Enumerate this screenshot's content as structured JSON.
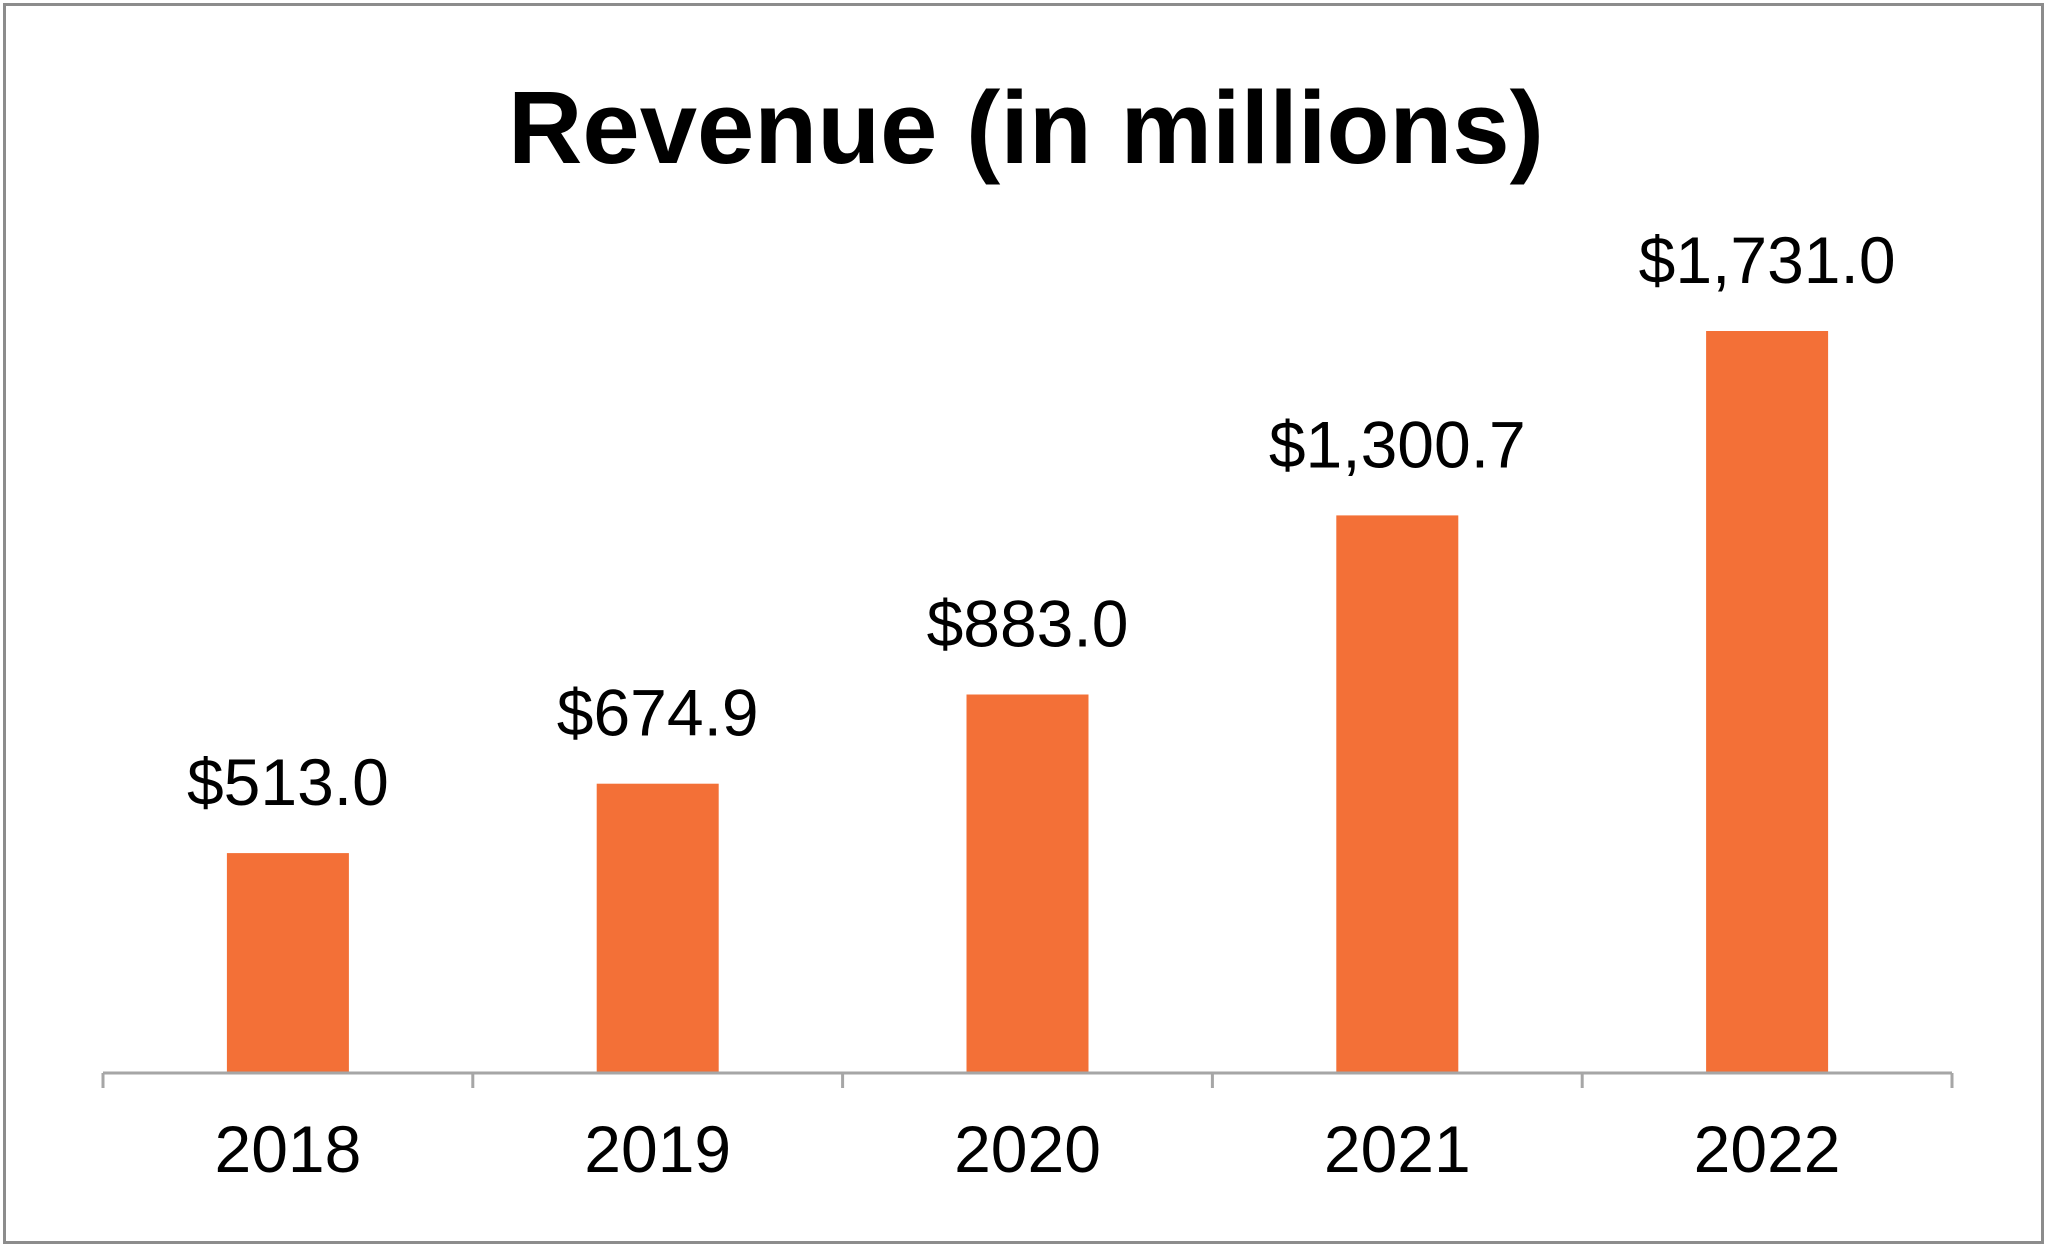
{
  "chart_data": {
    "type": "bar",
    "title": "Revenue (in millions)",
    "xlabel": "",
    "ylabel": "",
    "categories": [
      "2018",
      "2019",
      "2020",
      "2021",
      "2022"
    ],
    "values": [
      513.0,
      674.9,
      883.0,
      1300.7,
      1731.0
    ],
    "data_labels": [
      "$513.0",
      "$674.9",
      "$883.0",
      "$1,300.7",
      "$1,731.0"
    ],
    "ylim": [
      0,
      2000
    ],
    "grid": false,
    "legend": "none",
    "colors": {
      "bar": "#F37037",
      "axis": "#A6A6A6",
      "border": "#8C8C8C",
      "text": "#000000"
    }
  }
}
